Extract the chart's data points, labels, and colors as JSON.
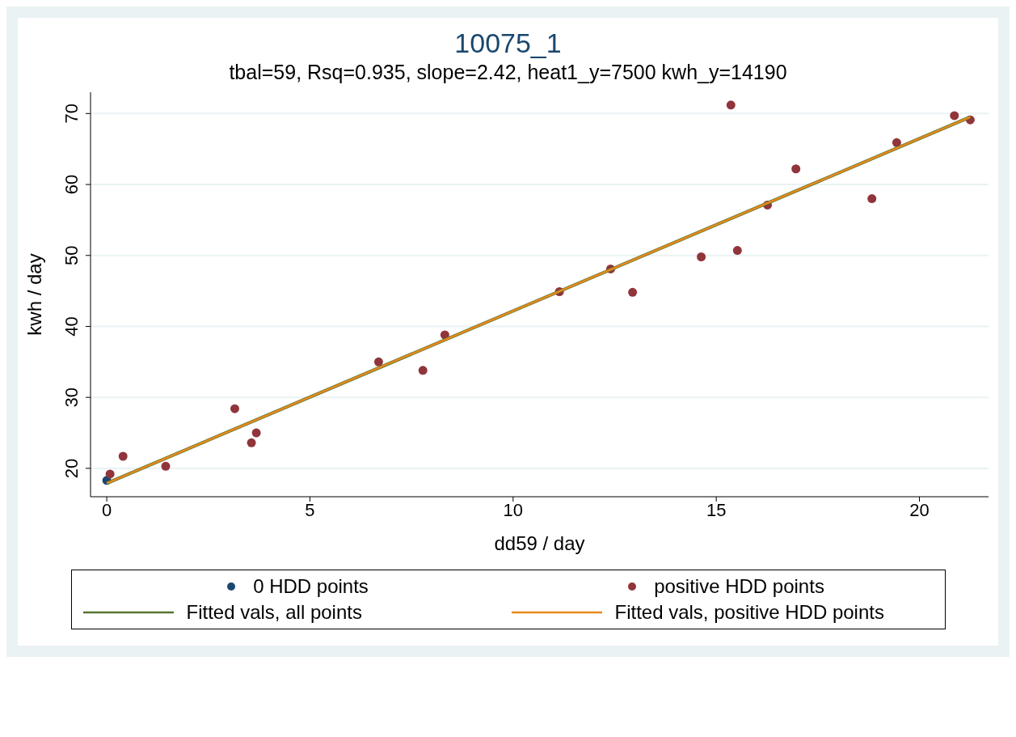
{
  "chart_data": {
    "type": "scatter",
    "title": "10075_1",
    "subtitle": "tbal=59, Rsq=0.935, slope=2.42, heat1_y=7500 kwh_y=14190",
    "xlabel": "dd59 / day",
    "ylabel": "kwh / day",
    "xlim": [
      -0.4,
      21.7
    ],
    "xticks": [
      0,
      5,
      10,
      15,
      20
    ],
    "ylim": [
      16,
      73
    ],
    "yticks": [
      20,
      30,
      40,
      50,
      60,
      70
    ],
    "grid": "y",
    "legend": "bottom",
    "series": [
      {
        "name": "0 HDD points",
        "marker": "circle",
        "color": "#1a476f",
        "x": [
          0
        ],
        "values": [
          18.3
        ]
      },
      {
        "name": "positive HDD points",
        "marker": "circle",
        "color": "#90353b",
        "x": [
          0.08,
          0.4,
          1.45,
          3.15,
          3.56,
          3.68,
          6.69,
          7.78,
          8.32,
          11.14,
          12.4,
          12.94,
          14.63,
          15.36,
          15.52,
          16.26,
          16.96,
          18.83,
          19.44,
          20.86,
          21.25
        ],
        "values": [
          19.2,
          21.7,
          20.3,
          28.4,
          23.6,
          25.0,
          35.0,
          33.8,
          38.8,
          44.9,
          48.1,
          44.8,
          49.8,
          71.2,
          50.7,
          57.1,
          62.2,
          58.0,
          65.9,
          69.7,
          69.1
        ]
      },
      {
        "name": "Fitted vals, all points",
        "type": "line",
        "marker": "none",
        "color": "#55752f",
        "x": [
          0,
          21.25
        ],
        "values": [
          17.9,
          69.5
        ]
      },
      {
        "name": "Fitted vals, positive HDD points",
        "type": "line",
        "marker": "none",
        "color": "#e8891e",
        "x": [
          0,
          21.25
        ],
        "values": [
          17.9,
          69.5
        ]
      }
    ]
  }
}
